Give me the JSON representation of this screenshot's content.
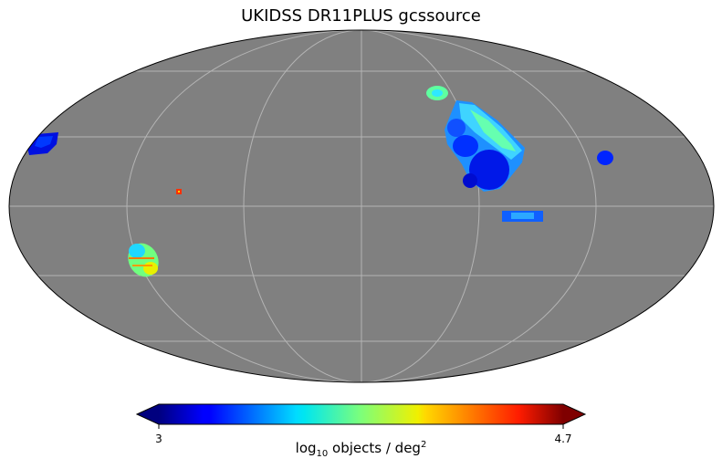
{
  "title": "UKIDSS DR11PLUS gcssource",
  "colorbar": {
    "min_label": "3",
    "max_label": "4.7",
    "label_prefix": "log",
    "label_sub": "10",
    "label_mid": " objects / deg",
    "label_sup": "2",
    "colormap": "jet"
  },
  "colors": {
    "background": "#808080",
    "graticule": "#b4b4b4",
    "outline": "#000000"
  },
  "map": {
    "projection": "mollweide",
    "graticule": true
  }
}
